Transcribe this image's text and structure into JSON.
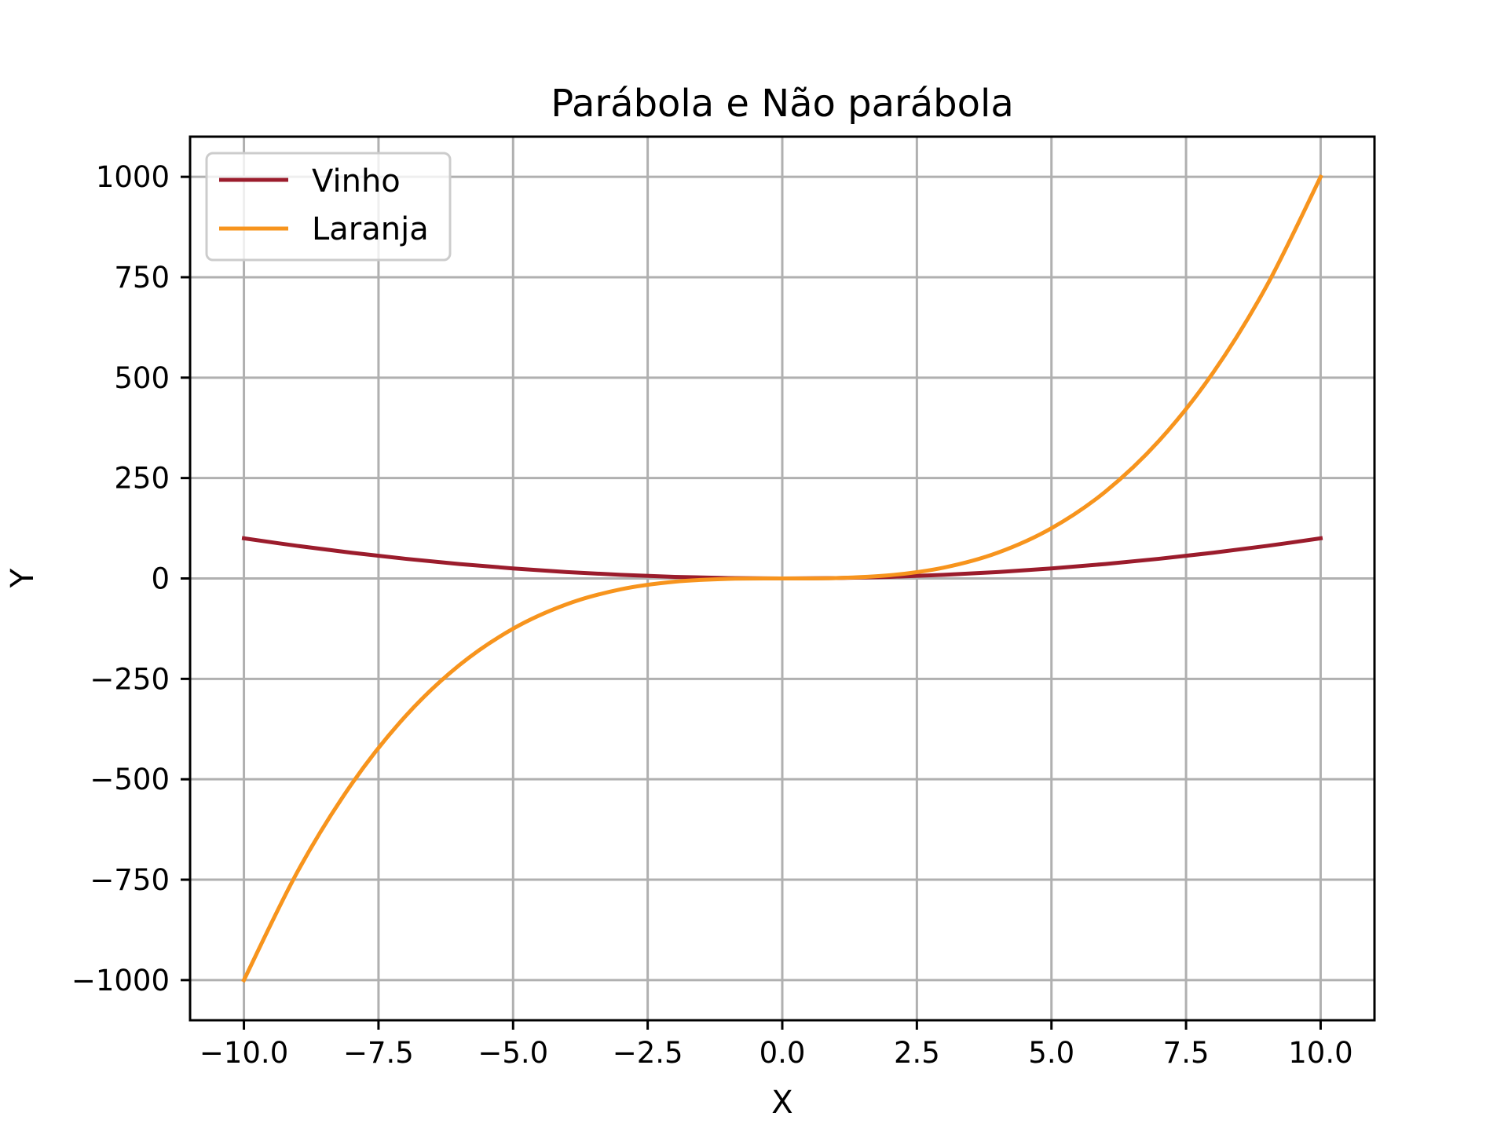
{
  "chart_data": {
    "type": "line",
    "title": "Parábola e Não parábola",
    "xlabel": "X",
    "ylabel": "Y",
    "xlim": [
      -11,
      11
    ],
    "ylim": [
      -1100,
      1100
    ],
    "x_ticks": [
      -10.0,
      -7.5,
      -5.0,
      -2.5,
      0.0,
      2.5,
      5.0,
      7.5,
      10.0
    ],
    "x_tick_labels": [
      "−10.0",
      "−7.5",
      "−5.0",
      "−2.5",
      "0.0",
      "2.5",
      "5.0",
      "7.5",
      "10.0"
    ],
    "y_ticks": [
      -1000,
      -750,
      -500,
      -250,
      0,
      250,
      500,
      750,
      1000
    ],
    "y_tick_labels": [
      "−1000",
      "−750",
      "−500",
      "−250",
      "0",
      "250",
      "500",
      "750",
      "1000"
    ],
    "grid": true,
    "legend_position": "upper-left",
    "x": [
      -10,
      -9,
      -8,
      -7,
      -6,
      -5,
      -4,
      -3,
      -2,
      -1,
      0,
      1,
      2,
      3,
      4,
      5,
      6,
      7,
      8,
      9,
      10
    ],
    "series": [
      {
        "name": "Vinho",
        "color": "#9b1c2c",
        "values": [
          100,
          81,
          64,
          49,
          36,
          25,
          16,
          9,
          4,
          1,
          0,
          1,
          4,
          9,
          16,
          25,
          36,
          49,
          64,
          81,
          100
        ]
      },
      {
        "name": "Laranja",
        "color": "#f7941d",
        "values": [
          -1000,
          -729,
          -512,
          -343,
          -216,
          -125,
          -64,
          -27,
          -8,
          -1,
          0,
          1,
          8,
          27,
          64,
          125,
          216,
          343,
          512,
          729,
          1000
        ]
      }
    ]
  }
}
